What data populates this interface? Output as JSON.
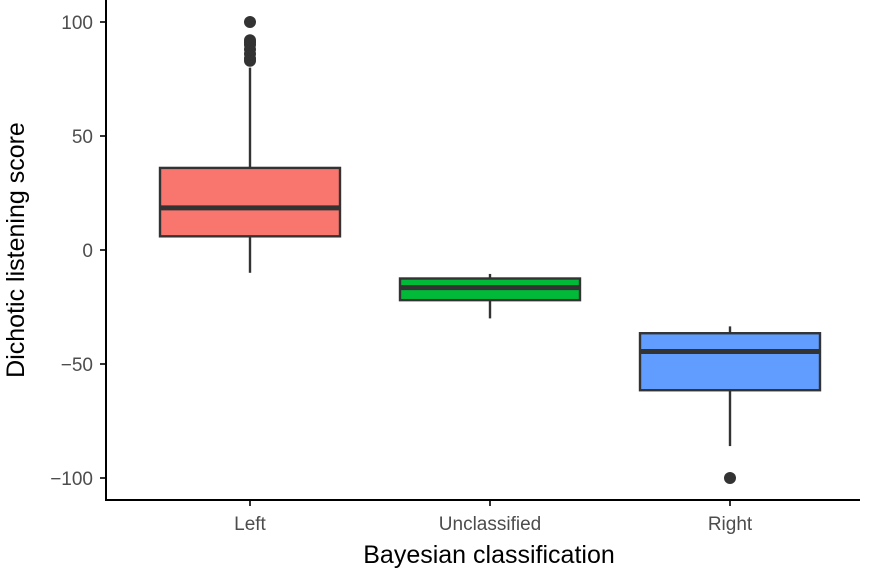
{
  "chart_data": {
    "type": "boxplot",
    "title": "",
    "xlabel": "Bayesian classification",
    "ylabel": "Dichotic listening score",
    "categories": [
      "Left",
      "Unclassified",
      "Right"
    ],
    "ylim": [
      -110,
      105
    ],
    "yticks": [
      {
        "value": 100,
        "label": "100"
      },
      {
        "value": 50,
        "label": "50"
      },
      {
        "value": 0,
        "label": "0"
      },
      {
        "value": -50,
        "label": "−50"
      },
      {
        "value": -100,
        "label": "−100"
      }
    ],
    "grid": false,
    "legend": "none",
    "series": [
      {
        "category": "Left",
        "whisker_low": -10,
        "q1": 6,
        "median": 18.5,
        "q3": 36,
        "whisker_high": 80,
        "outliers": [
          83,
          84,
          86,
          88,
          90,
          91,
          92,
          100
        ],
        "color": "#F8766D"
      },
      {
        "category": "Unclassified",
        "whisker_low": -30,
        "q1": -22,
        "median": -16.5,
        "q3": -12.5,
        "whisker_high": -10.5,
        "outliers": [],
        "color": "#00BA38"
      },
      {
        "category": "Right",
        "whisker_low": -86,
        "q1": -61.5,
        "median": -44.5,
        "q3": -36.5,
        "whisker_high": -33.5,
        "outliers": [
          -100
        ],
        "color": "#619CFF"
      }
    ]
  }
}
